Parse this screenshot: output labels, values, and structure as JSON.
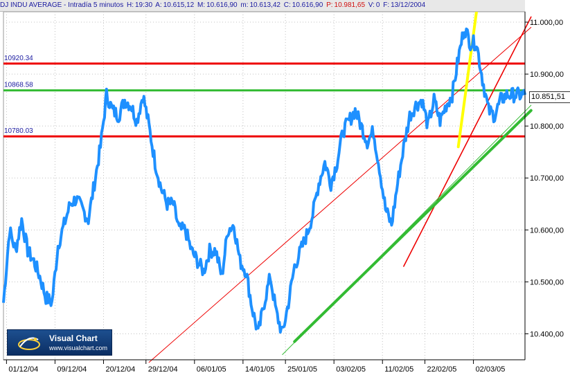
{
  "header": {
    "symbol": "DJ INDU AVERAGE - Intradía 5 minutos",
    "h_label": "H:",
    "h_value": "19:30",
    "a_label": "A:",
    "a_value": "10.615,12",
    "m_label": "M:",
    "m_value": "10.616,90",
    "low_label": "m:",
    "low_value": "10.613,42",
    "c_label": "C:",
    "c_value": "10.616,90",
    "p_label": "P:",
    "p_value": "10.981,65",
    "v_label": "V:",
    "v_value": "0",
    "f_label": "F:",
    "f_value": "13/12/2004"
  },
  "logo": {
    "title": "Visual Chart",
    "url": "www.visualchart.com"
  },
  "current_price": "10.851,51",
  "colors": {
    "price": "#1e90ff",
    "resistance": "#ee0000",
    "support": "#33bb33",
    "highlight": "#ffff00"
  },
  "chart_data": {
    "type": "line",
    "title": "DJ INDU AVERAGE - Intradía 5 minutos",
    "xlabel": "",
    "ylabel": "",
    "ylim": [
      10350,
      11020
    ],
    "grid": true,
    "y_ticks": [
      11000,
      10900,
      10800,
      10700,
      10600,
      10500,
      10400
    ],
    "y_tick_labels": [
      "11.000,00",
      "10.900,00",
      "10.800,00",
      "10.700,00",
      "10.600,00",
      "10.500,00",
      "10.400,00"
    ],
    "x_tick_labels": [
      "01/12/04",
      "09/12/04",
      "20/12/04",
      "29/12/04",
      "06/01/05",
      "14/01/05",
      "25/01/05",
      "03/02/05",
      "11/02/05",
      "22/02/05",
      "02/03/05"
    ],
    "x_tick_index": [
      0.5,
      8.5,
      16.5,
      23.5,
      31.5,
      39.5,
      46.5,
      54.5,
      62.5,
      69.5,
      77.5
    ],
    "x_count": 87,
    "series": [
      {
        "values": [
          10460,
          10600,
          10560,
          10620,
          10560,
          10540,
          10510,
          10470,
          10460,
          10570,
          10610,
          10650,
          10660,
          10640,
          10620,
          10690,
          10760,
          10860,
          10830,
          10820,
          10850,
          10840,
          10810,
          10860,
          10800,
          10730,
          10680,
          10650,
          10650,
          10600,
          10600,
          10560,
          10540,
          10520,
          10560,
          10560,
          10510,
          10600,
          10610,
          10540,
          10520,
          10450,
          10400,
          10460,
          10510,
          10440,
          10400,
          10460,
          10530,
          10560,
          10590,
          10630,
          10690,
          10730,
          10690,
          10730,
          10790,
          10810,
          10830,
          10800,
          10770,
          10790,
          10720,
          10640,
          10610,
          10690,
          10760,
          10820,
          10840,
          10850,
          10800,
          10850,
          10810,
          10840,
          10860,
          10930,
          10990,
          10960,
          10960,
          10890,
          10830,
          10820,
          10850,
          10860,
          10860,
          10860,
          10860
        ]
      }
    ],
    "horizontal_levels": [
      {
        "label": "10920.34",
        "value": 10920.34,
        "color": "#ee0000"
      },
      {
        "label": "10868.58",
        "value": 10868.58,
        "color": "#33bb33"
      },
      {
        "label": "10780.03",
        "value": 10780.03,
        "color": "#ee0000"
      }
    ],
    "trendlines": [
      {
        "color": "#ee0000",
        "from": [
          24,
          10345
        ],
        "to": [
          87,
          10990
        ],
        "weight": "thin"
      },
      {
        "color": "#ee0000",
        "from": [
          66,
          10530
        ],
        "to": [
          87,
          11010
        ],
        "weight": "medium"
      },
      {
        "color": "#33bb33",
        "from": [
          48,
          10385
        ],
        "to": [
          87,
          10830
        ],
        "weight": "thick"
      },
      {
        "color": "#33bb33",
        "from": [
          46,
          10360
        ],
        "to": [
          87,
          10840
        ],
        "weight": "thin"
      },
      {
        "color": "#ffff00",
        "from": [
          75,
          10760
        ],
        "to": [
          78,
          11020
        ],
        "weight": "thick"
      }
    ]
  }
}
